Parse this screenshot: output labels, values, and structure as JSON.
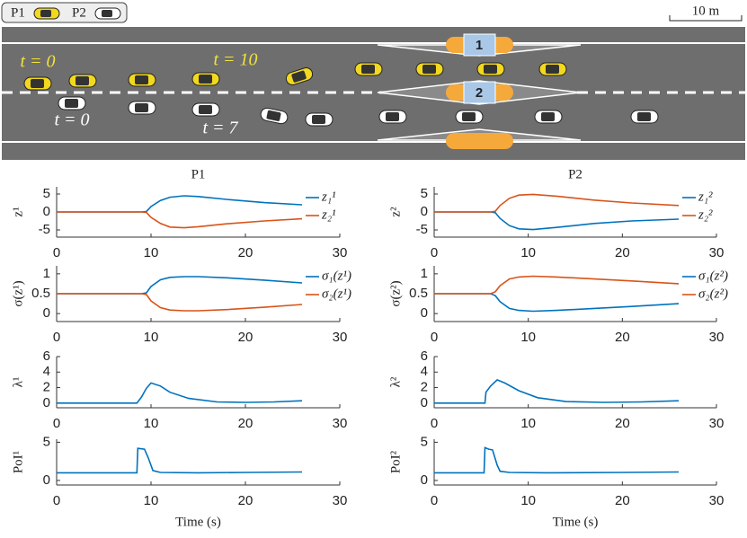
{
  "legend": {
    "entries": [
      "P1",
      "P2"
    ]
  },
  "scale_bar": "10 m",
  "road": {
    "time_labels": [
      "t = 0",
      "t = 10",
      "t = 0",
      "t = 7"
    ],
    "lane_markers": [
      "1",
      "2"
    ]
  },
  "chart_data": [
    {
      "type": "line",
      "title": "P1",
      "ylabel": "z¹",
      "legend": "right",
      "x": [
        0,
        9,
        9.5,
        10,
        11,
        12,
        13.5,
        15,
        18,
        22,
        26
      ],
      "series": [
        {
          "name": "z₁¹",
          "color": "#0072bd",
          "values": [
            0,
            0,
            0.1,
            1.5,
            3.2,
            4.1,
            4.5,
            4.3,
            3.5,
            2.6,
            2
          ]
        },
        {
          "name": "z₂¹",
          "color": "#d95319",
          "values": [
            0,
            0,
            -0.1,
            -1.5,
            -3.2,
            -4.2,
            -4.4,
            -4.1,
            -3.3,
            -2.5,
            -1.9
          ]
        }
      ],
      "xlim": [
        0,
        30
      ],
      "xticks": [
        0,
        10,
        20,
        30
      ],
      "ylim": [
        -7,
        7
      ],
      "yticks": [
        -5,
        0,
        5
      ],
      "grid": false
    },
    {
      "type": "line",
      "title": "P2",
      "ylabel": "z²",
      "legend": "right",
      "x": [
        0,
        6,
        6.5,
        7,
        8,
        9,
        10.5,
        13,
        17,
        21,
        26
      ],
      "series": [
        {
          "name": "z₁²",
          "color": "#0072bd",
          "values": [
            0,
            0,
            -0.2,
            -1.8,
            -3.8,
            -4.7,
            -4.9,
            -4.3,
            -3.2,
            -2.5,
            -2
          ]
        },
        {
          "name": "z₂²",
          "color": "#d95319",
          "values": [
            0,
            0,
            0.2,
            1.8,
            3.8,
            4.7,
            4.9,
            4.4,
            3.3,
            2.5,
            1.8
          ]
        }
      ],
      "xlim": [
        0,
        30
      ],
      "xticks": [
        0,
        10,
        20,
        30
      ],
      "ylim": [
        -7,
        7
      ],
      "yticks": [
        -5,
        0,
        5
      ],
      "grid": false
    },
    {
      "type": "line",
      "ylabel": "σ(z¹)",
      "legend": "right",
      "x": [
        0,
        9,
        9.5,
        10,
        11,
        12,
        13.5,
        15,
        18,
        22,
        26
      ],
      "series": [
        {
          "name": "σ₁(z¹)",
          "color": "#0072bd",
          "values": [
            0.5,
            0.5,
            0.52,
            0.68,
            0.85,
            0.91,
            0.93,
            0.93,
            0.9,
            0.84,
            0.77
          ]
        },
        {
          "name": "σ₂(z¹)",
          "color": "#d95319",
          "values": [
            0.5,
            0.5,
            0.48,
            0.32,
            0.15,
            0.09,
            0.07,
            0.07,
            0.1,
            0.16,
            0.23
          ]
        }
      ],
      "xlim": [
        0,
        30
      ],
      "xticks": [
        0,
        10,
        20,
        30
      ],
      "ylim": [
        -0.2,
        1.2
      ],
      "yticks": [
        0,
        0.5,
        1
      ],
      "grid": false
    },
    {
      "type": "line",
      "ylabel": "σ(z²)",
      "legend": "right",
      "x": [
        0,
        6,
        6.5,
        7,
        8,
        9,
        10.5,
        13,
        17,
        21,
        26
      ],
      "series": [
        {
          "name": "σ₁(z²)",
          "color": "#0072bd",
          "values": [
            0.5,
            0.5,
            0.45,
            0.3,
            0.13,
            0.08,
            0.06,
            0.08,
            0.13,
            0.18,
            0.25
          ]
        },
        {
          "name": "σ₂(z²)",
          "color": "#d95319",
          "values": [
            0.5,
            0.5,
            0.55,
            0.7,
            0.87,
            0.92,
            0.94,
            0.92,
            0.87,
            0.82,
            0.75
          ]
        }
      ],
      "xlim": [
        0,
        30
      ],
      "xticks": [
        0,
        10,
        20,
        30
      ],
      "ylim": [
        -0.2,
        1.2
      ],
      "yticks": [
        0,
        0.5,
        1
      ],
      "grid": false
    },
    {
      "type": "line",
      "ylabel": "λ¹",
      "x": [
        0,
        8.5,
        9,
        9.5,
        10,
        11,
        12,
        14,
        17,
        20,
        23,
        26
      ],
      "series": [
        {
          "color": "#0072bd",
          "values": [
            0,
            0,
            0.8,
            1.9,
            2.6,
            2.2,
            1.4,
            0.6,
            0.15,
            0.1,
            0.15,
            0.3
          ]
        }
      ],
      "xlim": [
        0,
        30
      ],
      "xticks": [
        0,
        10,
        20,
        30
      ],
      "ylim": [
        -0.6,
        6
      ],
      "yticks": [
        0,
        2,
        4,
        6
      ],
      "grid": false
    },
    {
      "type": "line",
      "ylabel": "λ²",
      "x": [
        0,
        5.4,
        5.5,
        6,
        6.7,
        7.5,
        9,
        11,
        14,
        18,
        22,
        26
      ],
      "series": [
        {
          "color": "#0072bd",
          "values": [
            0,
            0,
            1.4,
            2.2,
            3,
            2.6,
            1.6,
            0.7,
            0.2,
            0.1,
            0.15,
            0.3
          ]
        }
      ],
      "xlim": [
        0,
        30
      ],
      "xticks": [
        0,
        10,
        20,
        30
      ],
      "ylim": [
        -0.6,
        6
      ],
      "yticks": [
        0,
        2,
        4,
        6
      ],
      "grid": false
    },
    {
      "type": "line",
      "ylabel": "PoI¹",
      "xlabel": "Time (s)",
      "x": [
        0,
        8.5,
        8.6,
        9.3,
        9.7,
        10.2,
        11,
        15,
        20,
        26
      ],
      "series": [
        {
          "color": "#0072bd",
          "values": [
            1,
            1,
            4.2,
            4.1,
            3,
            1.3,
            1.05,
            1,
            1.05,
            1.1
          ]
        }
      ],
      "xlim": [
        0,
        30
      ],
      "xticks": [
        0,
        10,
        20,
        30
      ],
      "ylim": [
        -0.6,
        5.4
      ],
      "yticks": [
        0,
        5
      ],
      "grid": false
    },
    {
      "type": "line",
      "ylabel": "PoI²",
      "xlabel": "Time (s)",
      "x": [
        0,
        5.3,
        5.4,
        5.8,
        6.2,
        6.7,
        7,
        8,
        12,
        20,
        26
      ],
      "series": [
        {
          "color": "#0072bd",
          "values": [
            1,
            1,
            4.3,
            4.1,
            4,
            2,
            1.2,
            1.05,
            1,
            1.05,
            1.1
          ]
        }
      ],
      "xlim": [
        0,
        30
      ],
      "xticks": [
        0,
        10,
        20,
        30
      ],
      "ylim": [
        -0.6,
        5.4
      ],
      "yticks": [
        0,
        5
      ],
      "grid": false
    }
  ]
}
